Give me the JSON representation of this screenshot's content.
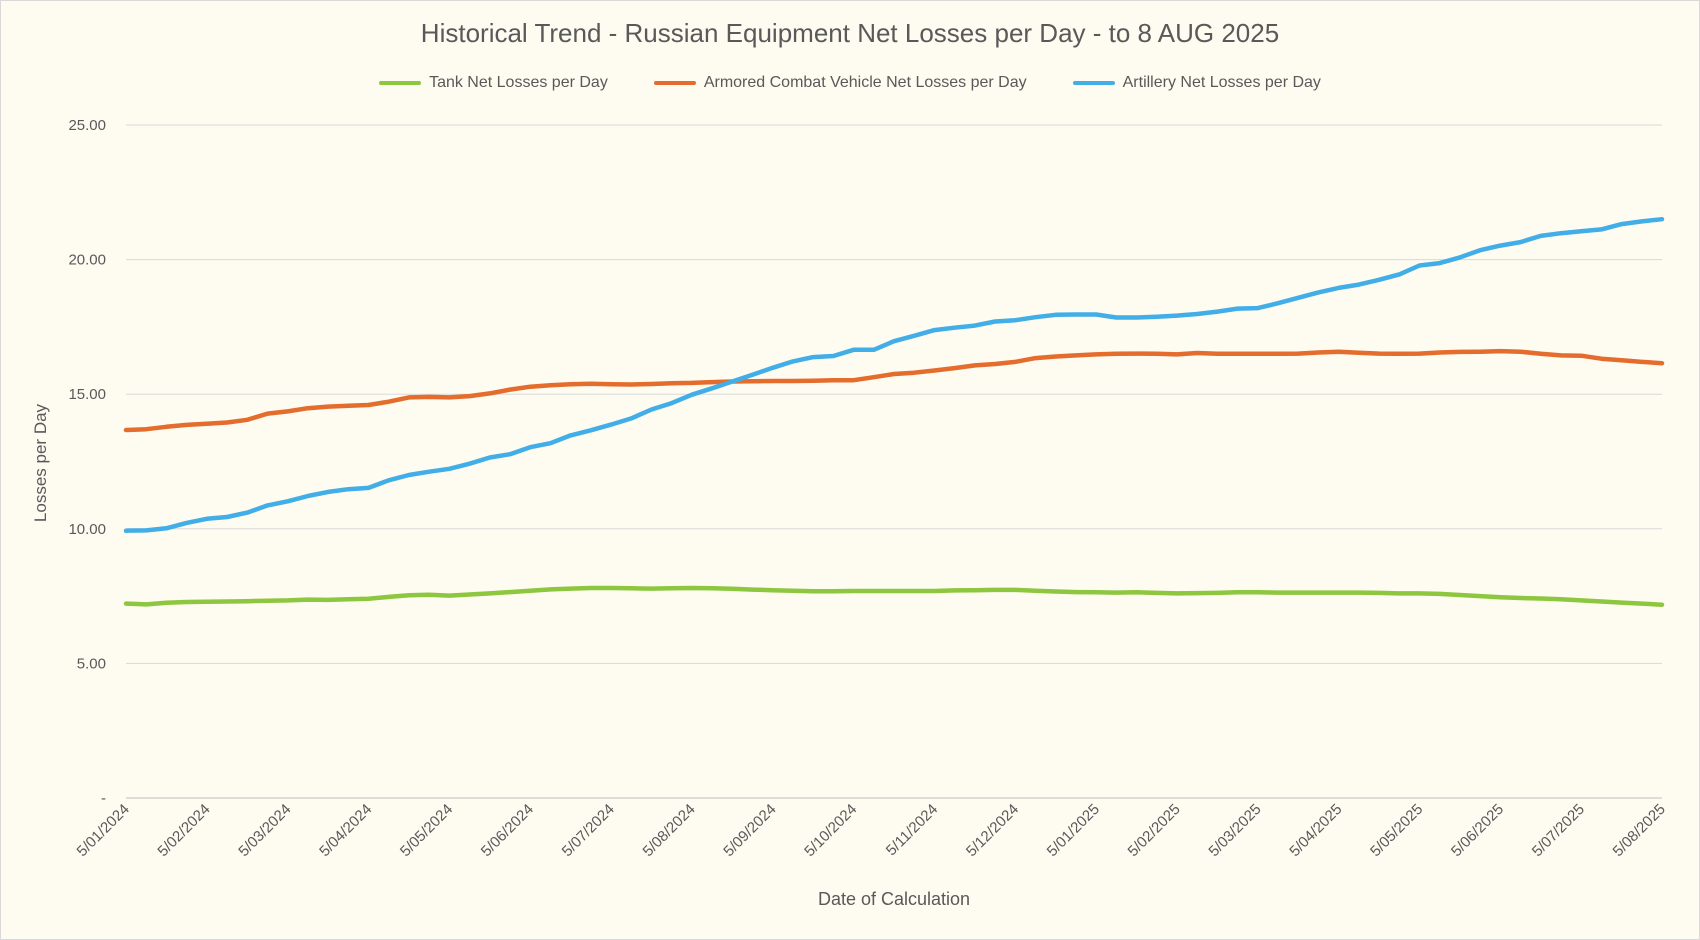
{
  "chart_data": {
    "type": "line",
    "title": "Historical Trend - Russian Equipment Net Losses per Day - to 8 AUG 2025",
    "xlabel": "Date of Calculation",
    "ylabel": "Losses per Day",
    "ylim": [
      0,
      25
    ],
    "y_ticks": [
      {
        "value": 0,
        "label": "-"
      },
      {
        "value": 5,
        "label": "5.00"
      },
      {
        "value": 10,
        "label": "10.00"
      },
      {
        "value": 15,
        "label": "15.00"
      },
      {
        "value": 20,
        "label": "20.00"
      },
      {
        "value": 25,
        "label": "25.00"
      }
    ],
    "x_tick_labels": [
      "5/01/2024",
      "5/02/2024",
      "5/03/2024",
      "5/04/2024",
      "5/05/2024",
      "5/06/2024",
      "5/07/2024",
      "5/08/2024",
      "5/09/2024",
      "5/10/2024",
      "5/11/2024",
      "5/12/2024",
      "5/01/2025",
      "5/02/2025",
      "5/03/2025",
      "5/04/2025",
      "5/05/2025",
      "5/06/2025",
      "5/07/2025",
      "5/08/2025"
    ],
    "grid": true,
    "legend_position": "top",
    "series": [
      {
        "name": "Tank Net Losses per Day",
        "color": "#8dc63f",
        "values": [
          [
            0,
            7.22
          ],
          [
            0.25,
            7.19
          ],
          [
            0.5,
            7.25
          ],
          [
            0.75,
            7.28
          ],
          [
            1,
            7.29
          ],
          [
            1.25,
            7.3
          ],
          [
            1.5,
            7.31
          ],
          [
            1.75,
            7.33
          ],
          [
            2,
            7.34
          ],
          [
            2.25,
            7.37
          ],
          [
            2.5,
            7.36
          ],
          [
            2.75,
            7.38
          ],
          [
            3,
            7.4
          ],
          [
            3.25,
            7.47
          ],
          [
            3.5,
            7.53
          ],
          [
            3.75,
            7.55
          ],
          [
            4,
            7.52
          ],
          [
            4.25,
            7.56
          ],
          [
            4.5,
            7.6
          ],
          [
            4.75,
            7.65
          ],
          [
            5,
            7.7
          ],
          [
            5.25,
            7.75
          ],
          [
            5.5,
            7.78
          ],
          [
            5.75,
            7.8
          ],
          [
            6,
            7.8
          ],
          [
            6.25,
            7.79
          ],
          [
            6.5,
            7.78
          ],
          [
            6.75,
            7.79
          ],
          [
            7,
            7.8
          ],
          [
            7.25,
            7.79
          ],
          [
            7.5,
            7.77
          ],
          [
            7.75,
            7.74
          ],
          [
            8,
            7.72
          ],
          [
            8.25,
            7.7
          ],
          [
            8.5,
            7.68
          ],
          [
            8.75,
            7.68
          ],
          [
            9,
            7.69
          ],
          [
            9.25,
            7.69
          ],
          [
            9.5,
            7.69
          ],
          [
            9.75,
            7.69
          ],
          [
            10,
            7.69
          ],
          [
            10.25,
            7.71
          ],
          [
            10.5,
            7.72
          ],
          [
            10.75,
            7.73
          ],
          [
            11,
            7.73
          ],
          [
            11.25,
            7.7
          ],
          [
            11.5,
            7.67
          ],
          [
            11.75,
            7.65
          ],
          [
            12,
            7.64
          ],
          [
            12.25,
            7.63
          ],
          [
            12.5,
            7.64
          ],
          [
            12.75,
            7.62
          ],
          [
            13,
            7.6
          ],
          [
            13.25,
            7.61
          ],
          [
            13.5,
            7.62
          ],
          [
            13.75,
            7.64
          ],
          [
            14,
            7.64
          ],
          [
            14.25,
            7.63
          ],
          [
            14.5,
            7.63
          ],
          [
            14.75,
            7.63
          ],
          [
            15,
            7.63
          ],
          [
            15.25,
            7.63
          ],
          [
            15.5,
            7.62
          ],
          [
            15.75,
            7.6
          ],
          [
            16,
            7.6
          ],
          [
            16.25,
            7.58
          ],
          [
            16.5,
            7.54
          ],
          [
            16.75,
            7.5
          ],
          [
            17,
            7.46
          ],
          [
            17.25,
            7.43
          ],
          [
            17.5,
            7.41
          ],
          [
            17.75,
            7.38
          ],
          [
            18,
            7.34
          ],
          [
            18.25,
            7.3
          ],
          [
            18.5,
            7.26
          ],
          [
            18.75,
            7.22
          ],
          [
            19,
            7.18
          ]
        ]
      },
      {
        "name": "Armored Combat Vehicle Net Losses per Day",
        "color": "#e46c2c",
        "values": [
          [
            0,
            13.67
          ],
          [
            0.25,
            13.7
          ],
          [
            0.5,
            13.79
          ],
          [
            0.75,
            13.86
          ],
          [
            1,
            13.9
          ],
          [
            1.25,
            13.95
          ],
          [
            1.5,
            14.05
          ],
          [
            1.75,
            14.28
          ],
          [
            2,
            14.36
          ],
          [
            2.25,
            14.48
          ],
          [
            2.5,
            14.54
          ],
          [
            2.75,
            14.57
          ],
          [
            3,
            14.6
          ],
          [
            3.25,
            14.72
          ],
          [
            3.5,
            14.88
          ],
          [
            3.75,
            14.9
          ],
          [
            4,
            14.88
          ],
          [
            4.25,
            14.93
          ],
          [
            4.5,
            15.03
          ],
          [
            4.75,
            15.17
          ],
          [
            5,
            15.28
          ],
          [
            5.25,
            15.33
          ],
          [
            5.5,
            15.37
          ],
          [
            5.75,
            15.39
          ],
          [
            6,
            15.37
          ],
          [
            6.25,
            15.36
          ],
          [
            6.5,
            15.38
          ],
          [
            6.75,
            15.41
          ],
          [
            7,
            15.42
          ],
          [
            7.25,
            15.45
          ],
          [
            7.5,
            15.47
          ],
          [
            7.75,
            15.48
          ],
          [
            8,
            15.49
          ],
          [
            8.25,
            15.49
          ],
          [
            8.5,
            15.5
          ],
          [
            8.75,
            15.52
          ],
          [
            9,
            15.52
          ],
          [
            9.25,
            15.63
          ],
          [
            9.5,
            15.75
          ],
          [
            9.75,
            15.8
          ],
          [
            10,
            15.88
          ],
          [
            10.25,
            15.97
          ],
          [
            10.5,
            16.07
          ],
          [
            10.75,
            16.12
          ],
          [
            11,
            16.2
          ],
          [
            11.25,
            16.34
          ],
          [
            11.5,
            16.4
          ],
          [
            11.75,
            16.44
          ],
          [
            12,
            16.48
          ],
          [
            12.25,
            16.5
          ],
          [
            12.5,
            16.51
          ],
          [
            12.75,
            16.5
          ],
          [
            13,
            16.48
          ],
          [
            13.25,
            16.53
          ],
          [
            13.5,
            16.5
          ],
          [
            13.75,
            16.5
          ],
          [
            14,
            16.5
          ],
          [
            14.25,
            16.5
          ],
          [
            14.5,
            16.51
          ],
          [
            14.75,
            16.55
          ],
          [
            15,
            16.58
          ],
          [
            15.25,
            16.54
          ],
          [
            15.5,
            16.51
          ],
          [
            15.75,
            16.5
          ],
          [
            16,
            16.51
          ],
          [
            16.25,
            16.55
          ],
          [
            16.5,
            16.57
          ],
          [
            16.75,
            16.58
          ],
          [
            17,
            16.6
          ],
          [
            17.25,
            16.58
          ],
          [
            17.5,
            16.5
          ],
          [
            17.75,
            16.44
          ],
          [
            18,
            16.43
          ],
          [
            18.25,
            16.32
          ],
          [
            18.5,
            16.26
          ],
          [
            18.75,
            16.2
          ],
          [
            19,
            16.15
          ]
        ]
      },
      {
        "name": "Artillery Net Losses per Day",
        "color": "#41aee8",
        "values": [
          [
            0,
            9.93
          ],
          [
            0.25,
            9.94
          ],
          [
            0.5,
            10.02
          ],
          [
            0.75,
            10.22
          ],
          [
            1,
            10.37
          ],
          [
            1.25,
            10.44
          ],
          [
            1.5,
            10.6
          ],
          [
            1.75,
            10.87
          ],
          [
            2,
            11.02
          ],
          [
            2.25,
            11.22
          ],
          [
            2.5,
            11.37
          ],
          [
            2.75,
            11.47
          ],
          [
            3,
            11.52
          ],
          [
            3.25,
            11.8
          ],
          [
            3.5,
            12.0
          ],
          [
            3.75,
            12.12
          ],
          [
            4,
            12.23
          ],
          [
            4.25,
            12.42
          ],
          [
            4.5,
            12.65
          ],
          [
            4.75,
            12.77
          ],
          [
            5,
            13.03
          ],
          [
            5.25,
            13.18
          ],
          [
            5.5,
            13.47
          ],
          [
            5.75,
            13.66
          ],
          [
            6,
            13.87
          ],
          [
            6.25,
            14.1
          ],
          [
            6.5,
            14.43
          ],
          [
            6.75,
            14.67
          ],
          [
            7,
            14.98
          ],
          [
            7.25,
            15.22
          ],
          [
            7.5,
            15.47
          ],
          [
            7.75,
            15.72
          ],
          [
            8,
            15.98
          ],
          [
            8.25,
            16.22
          ],
          [
            8.5,
            16.38
          ],
          [
            8.75,
            16.42
          ],
          [
            9,
            16.65
          ],
          [
            9.25,
            16.65
          ],
          [
            9.5,
            16.97
          ],
          [
            9.75,
            17.17
          ],
          [
            10,
            17.38
          ],
          [
            10.25,
            17.47
          ],
          [
            10.5,
            17.55
          ],
          [
            10.75,
            17.7
          ],
          [
            11,
            17.75
          ],
          [
            11.25,
            17.86
          ],
          [
            11.5,
            17.95
          ],
          [
            11.75,
            17.96
          ],
          [
            12,
            17.96
          ],
          [
            12.25,
            17.85
          ],
          [
            12.5,
            17.85
          ],
          [
            12.75,
            17.88
          ],
          [
            13,
            17.92
          ],
          [
            13.25,
            17.98
          ],
          [
            13.5,
            18.07
          ],
          [
            13.75,
            18.18
          ],
          [
            14,
            18.2
          ],
          [
            14.25,
            18.38
          ],
          [
            14.5,
            18.58
          ],
          [
            14.75,
            18.78
          ],
          [
            15,
            18.95
          ],
          [
            15.25,
            19.07
          ],
          [
            15.5,
            19.25
          ],
          [
            15.75,
            19.45
          ],
          [
            16,
            19.78
          ],
          [
            16.25,
            19.87
          ],
          [
            16.5,
            20.08
          ],
          [
            16.75,
            20.35
          ],
          [
            17,
            20.52
          ],
          [
            17.25,
            20.65
          ],
          [
            17.5,
            20.88
          ],
          [
            17.75,
            20.98
          ],
          [
            18,
            21.05
          ],
          [
            18.25,
            21.12
          ],
          [
            18.5,
            21.32
          ],
          [
            18.75,
            21.42
          ],
          [
            19,
            21.5
          ]
        ]
      }
    ]
  }
}
